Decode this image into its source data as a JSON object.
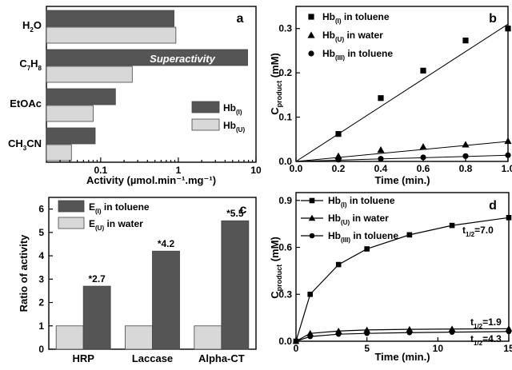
{
  "chart_data": [
    {
      "panel": "a",
      "type": "bar",
      "orientation": "horizontal",
      "x_scale": "log",
      "xlim": [
        0.02,
        10
      ],
      "xlabel": "Activity (µmol.min⁻¹.mg⁻¹)",
      "xticks": [
        "0.1",
        "1",
        "10"
      ],
      "categories": [
        "H₂O",
        "C₇H₈",
        "EtOAc",
        "CH₃CN"
      ],
      "series": [
        {
          "name": "Hb(I)",
          "color": "#555555",
          "values": [
            0.88,
            7.8,
            0.155,
            0.085
          ]
        },
        {
          "name": "Hb(U)",
          "color": "#d8d8d8",
          "values": [
            0.93,
            0.255,
            0.08,
            0.042
          ]
        }
      ],
      "annotations": [
        "Superactivity"
      ],
      "legend": {
        "hb_i": "Hb",
        "hb_i_sub": "(I)",
        "hb_u": "Hb",
        "hb_u_sub": "(U)"
      }
    },
    {
      "panel": "b",
      "type": "scatter",
      "xlim": [
        0,
        1.0
      ],
      "ylim": [
        0,
        0.35
      ],
      "xticks": [
        "0.0",
        "0.2",
        "0.4",
        "0.6",
        "0.8",
        "1.0"
      ],
      "yticks": [
        "0.0",
        "0.1",
        "0.2",
        "0.3"
      ],
      "xlabel": "Time (min.)",
      "ylabel": "C",
      "ylabel_sub": "product",
      "ylabel_unit": " (mM)",
      "series": [
        {
          "name": "Hb(I) in toluene",
          "marker": "square",
          "x": [
            0.2,
            0.4,
            0.6,
            0.8,
            1.0
          ],
          "y": [
            0.062,
            0.143,
            0.205,
            0.273,
            0.3
          ],
          "fit": [
            [
              0,
              0
            ],
            [
              1.0,
              0.31
            ]
          ]
        },
        {
          "name": "Hb(U) in water",
          "marker": "triangle",
          "x": [
            0.2,
            0.4,
            0.6,
            0.8,
            1.0
          ],
          "y": [
            0.012,
            0.026,
            0.033,
            0.038,
            0.046
          ],
          "fit": [
            [
              0,
              0
            ],
            [
              1.0,
              0.045
            ]
          ]
        },
        {
          "name": "Hb(III) in toluene",
          "marker": "circle",
          "x": [
            0.2,
            0.4,
            0.6,
            0.8,
            1.0
          ],
          "y": [
            0.004,
            0.006,
            0.009,
            0.012,
            0.014
          ],
          "fit": [
            [
              0,
              0
            ],
            [
              1.0,
              0.014
            ]
          ]
        }
      ],
      "legend": [
        {
          "main": "Hb",
          "sub": "(I)",
          "rest": " in toluene"
        },
        {
          "main": "Hb",
          "sub": "(U)",
          "rest": " in water"
        },
        {
          "main": "Hb",
          "sub": "(III)",
          "rest": " in toluene"
        }
      ]
    },
    {
      "panel": "c",
      "type": "bar",
      "categories": [
        "HRP",
        "Laccase",
        "Alpha-CT"
      ],
      "ylim": [
        0,
        6.5
      ],
      "yticks": [
        "0",
        "1",
        "2",
        "3",
        "4",
        "5",
        "6"
      ],
      "ylabel": "Ratio of activity",
      "series": [
        {
          "name": "E(U) in water",
          "color": "#d8d8d8",
          "values": [
            1,
            1,
            1
          ]
        },
        {
          "name": "E(I) in toluene",
          "color": "#555555",
          "values": [
            2.7,
            4.2,
            5.5
          ]
        }
      ],
      "data_labels": [
        "*2.7",
        "*4.2",
        "*5.5"
      ],
      "legend": [
        {
          "main": "E",
          "sub": "(I)",
          "rest": " in toluene"
        },
        {
          "main": "E",
          "sub": "(U)",
          "rest": " in water"
        }
      ]
    },
    {
      "panel": "d",
      "type": "line",
      "xlim": [
        0,
        15
      ],
      "ylim": [
        0,
        0.95
      ],
      "xticks": [
        "0",
        "5",
        "10",
        "15"
      ],
      "yticks": [
        "0.0",
        "0.3",
        "0.6",
        "0.9"
      ],
      "xlabel": "Time (min.)",
      "ylabel": "C",
      "ylabel_sub": "product",
      "ylabel_unit": " (mM)",
      "series": [
        {
          "name": "Hb(I) in toluene",
          "marker": "square",
          "x": [
            0,
            1,
            3,
            5,
            8,
            11,
            15
          ],
          "y": [
            0,
            0.3,
            0.49,
            0.59,
            0.68,
            0.74,
            0.79
          ],
          "half_life": "7.0"
        },
        {
          "name": "Hb(U) in water",
          "marker": "triangle",
          "x": [
            0,
            1,
            3,
            5,
            8,
            11,
            15
          ],
          "y": [
            0,
            0.05,
            0.065,
            0.072,
            0.076,
            0.078,
            0.08
          ],
          "half_life": "1.9"
        },
        {
          "name": "Hb(III) in toluene",
          "marker": "circle",
          "x": [
            0,
            1,
            3,
            5,
            8,
            11,
            15
          ],
          "y": [
            0,
            0.03,
            0.045,
            0.05,
            0.055,
            0.058,
            0.062
          ],
          "half_life": "4.3"
        }
      ],
      "half_life_prefix": "t",
      "half_life_sub": "1/2",
      "half_life_eq": "=",
      "legend": [
        {
          "main": "Hb",
          "sub": "(I)",
          "rest": " in toluene"
        },
        {
          "main": "Hb",
          "sub": "(U)",
          "rest": " in water"
        },
        {
          "main": "Hb",
          "sub": "(III)",
          "rest": " in toluene"
        }
      ]
    }
  ]
}
